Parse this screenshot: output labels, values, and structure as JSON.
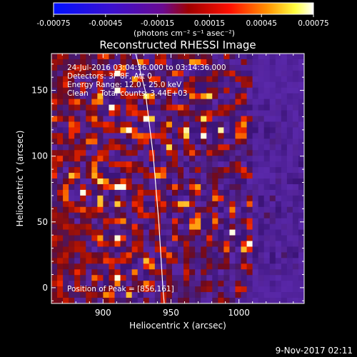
{
  "colorbar": {
    "ticks": [
      "-0.00075",
      "-0.00045",
      "-0.00015",
      "0.00015",
      "0.00045",
      "0.00075"
    ],
    "units_label": "(photons cm⁻² s⁻¹ asec⁻²)",
    "range": [
      -0.00075,
      0.00075
    ]
  },
  "chart_data": {
    "type": "heatmap",
    "title": "Reconstructed RHESSI Image",
    "xlabel": "Heliocentric X (arcsec)",
    "ylabel": "Heliocentric Y (arcsec)",
    "xlim": [
      862,
      1048
    ],
    "ylim": [
      -12,
      178
    ],
    "x_ticks": [
      "900",
      "950",
      "1000"
    ],
    "y_ticks": [
      "0",
      "50",
      "100",
      "150"
    ],
    "x_tick_values": [
      900,
      950,
      1000
    ],
    "y_tick_values": [
      0,
      50,
      100,
      150
    ],
    "annotations": [
      "24-Jul-2016 03:04:36.000 to 03:14:36.000",
      "Detectors: 3F 8F, Att 0",
      "Energy Range: 12.0 - 25.0 keV",
      "Clean     Total counts: 3.44E+03"
    ],
    "peak_label": "Position of Peak = [856,161]",
    "limb_line": [
      [
        924,
        178
      ],
      [
        931,
        150
      ],
      [
        937,
        100
      ],
      [
        941,
        50
      ],
      [
        944,
        0
      ],
      [
        945,
        -12
      ]
    ]
  },
  "footer": {
    "date": "9-Nov-2017 02:11"
  }
}
